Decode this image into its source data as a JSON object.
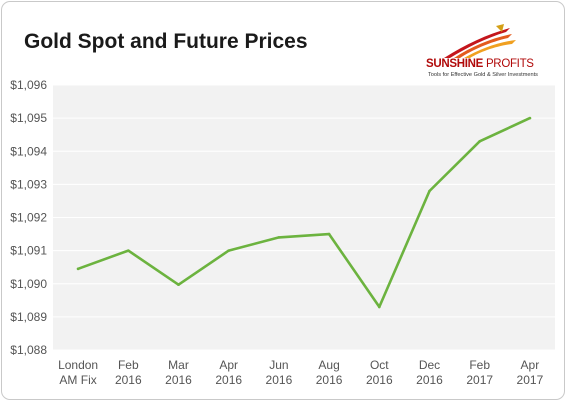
{
  "title": "Gold Spot and Future Prices",
  "logo": {
    "name_bold": "SUNSHINE",
    "name_light": "PROFITS",
    "tagline": "Tools for Effective Gold & Silver Investments"
  },
  "colors": {
    "line": "#6cb33f",
    "plot_bg": "#f2f2f2",
    "grid": "#ffffff",
    "axis_text": "#555555",
    "logo_red": "#b10a0a"
  },
  "chart_data": {
    "type": "line",
    "title": "Gold Spot and Future Prices",
    "xlabel": "",
    "ylabel": "",
    "ylim": [
      1088,
      1096
    ],
    "y_ticks": [
      "$1,096",
      "$1,095",
      "$1,094",
      "$1,093",
      "$1,092",
      "$1,091",
      "$1,090",
      "$1,089",
      "$1,088"
    ],
    "categories": [
      [
        "London",
        "AM Fix"
      ],
      [
        "Feb",
        "2016"
      ],
      [
        "Mar",
        "2016"
      ],
      [
        "Apr",
        "2016"
      ],
      [
        "Jun",
        "2016"
      ],
      [
        "Aug",
        "2016"
      ],
      [
        "Oct",
        "2016"
      ],
      [
        "Dec",
        "2016"
      ],
      [
        "Feb",
        "2017"
      ],
      [
        "Apr",
        "2017"
      ]
    ],
    "values": [
      1090.45,
      1091.0,
      1089.97,
      1091.0,
      1091.4,
      1091.5,
      1089.3,
      1092.8,
      1094.3,
      1095.0
    ],
    "grid": true,
    "legend": "none"
  }
}
